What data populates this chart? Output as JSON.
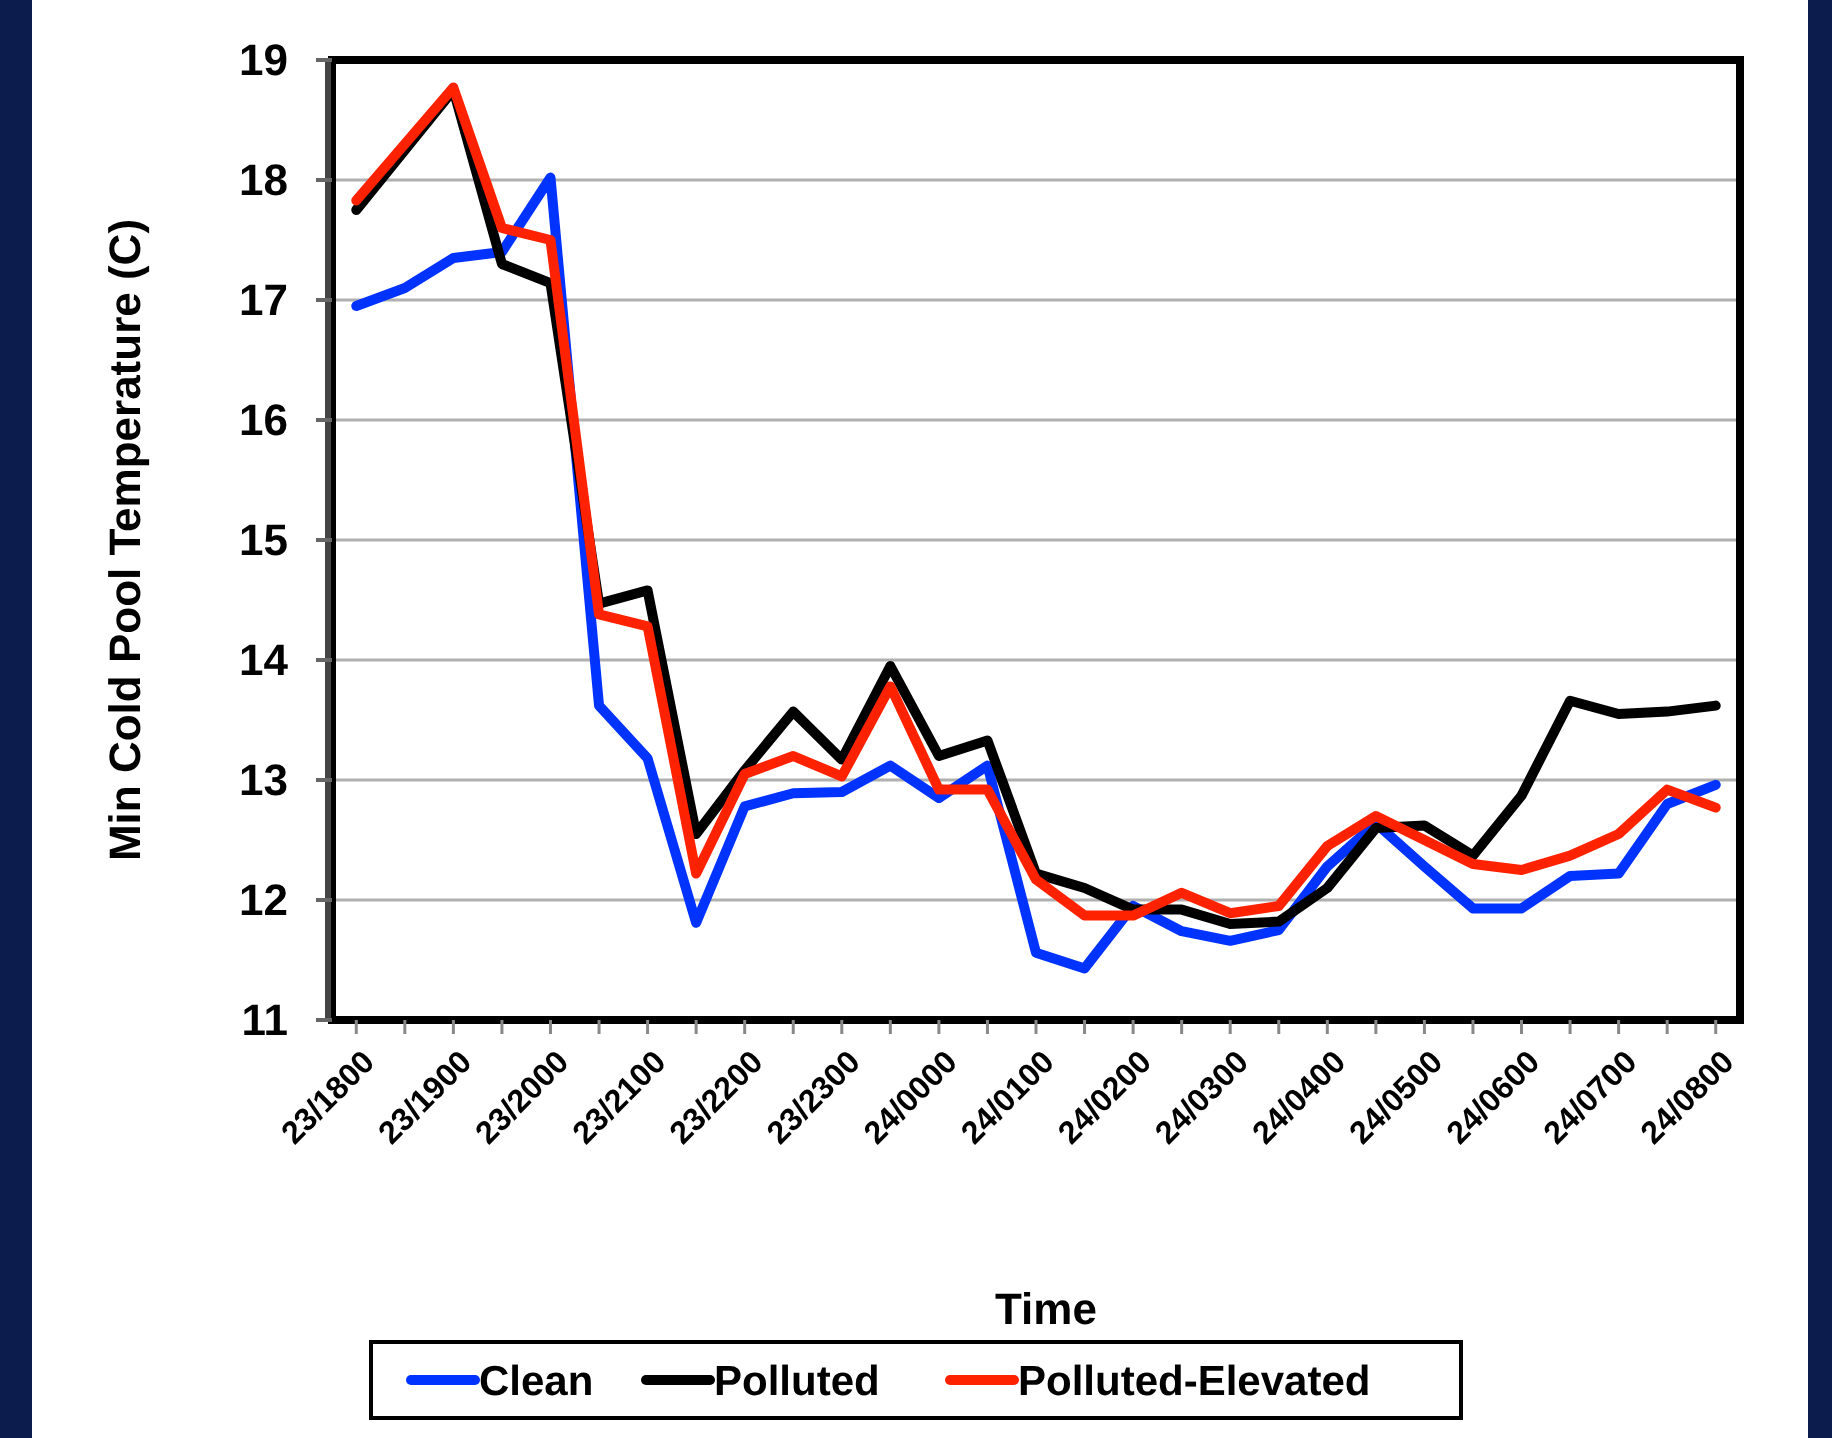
{
  "chart_data": {
    "type": "line",
    "xlabel": "Time",
    "ylabel": "Min Cold Pool Temperature (C)",
    "categories": [
      "23/1800",
      null,
      "23/1900",
      null,
      "23/2000",
      null,
      "23/2100",
      null,
      "23/2200",
      null,
      "23/2300",
      null,
      "24/0000",
      null,
      "24/0100",
      null,
      "24/0200",
      null,
      "24/0300",
      null,
      "24/0400",
      null,
      "24/0500",
      null,
      "24/0600",
      null,
      "24/0700",
      null,
      "24/0800"
    ],
    "series": [
      {
        "name": "Clean",
        "color": "#0033ff",
        "values": [
          16.95,
          17.1,
          17.35,
          17.4,
          18.02,
          13.62,
          13.18,
          11.81,
          12.78,
          12.89,
          12.9,
          13.12,
          12.85,
          13.12,
          11.56,
          11.43,
          11.95,
          11.74,
          11.66,
          11.75,
          12.28,
          12.64,
          12.28,
          11.93,
          11.93,
          12.2,
          12.22,
          12.8,
          12.96
        ]
      },
      {
        "name": "Polluted",
        "color": "#000000",
        "values": [
          17.75,
          18.25,
          18.75,
          17.3,
          17.14,
          14.47,
          14.58,
          12.55,
          13.08,
          13.57,
          13.17,
          13.95,
          13.2,
          13.33,
          12.22,
          12.1,
          11.92,
          11.92,
          11.8,
          11.82,
          12.1,
          12.6,
          12.62,
          12.37,
          12.87,
          13.66,
          13.55,
          13.57,
          13.62
        ]
      },
      {
        "name": "Polluted-Elevated",
        "color": "#ff2200",
        "values": [
          17.83,
          18.3,
          18.77,
          17.6,
          17.5,
          14.38,
          14.28,
          12.22,
          13.05,
          13.2,
          13.03,
          13.78,
          12.92,
          12.92,
          12.17,
          11.87,
          11.87,
          12.06,
          11.89,
          11.95,
          12.45,
          12.7,
          12.5,
          12.3,
          12.25,
          12.37,
          12.55,
          12.92,
          12.77
        ]
      }
    ],
    "ylim": [
      11,
      19
    ],
    "yticks": [
      11,
      12,
      13,
      14,
      15,
      16,
      17,
      18,
      19
    ],
    "grid": "y",
    "legend": "bottom",
    "marker": "none",
    "line_style": "solid"
  }
}
